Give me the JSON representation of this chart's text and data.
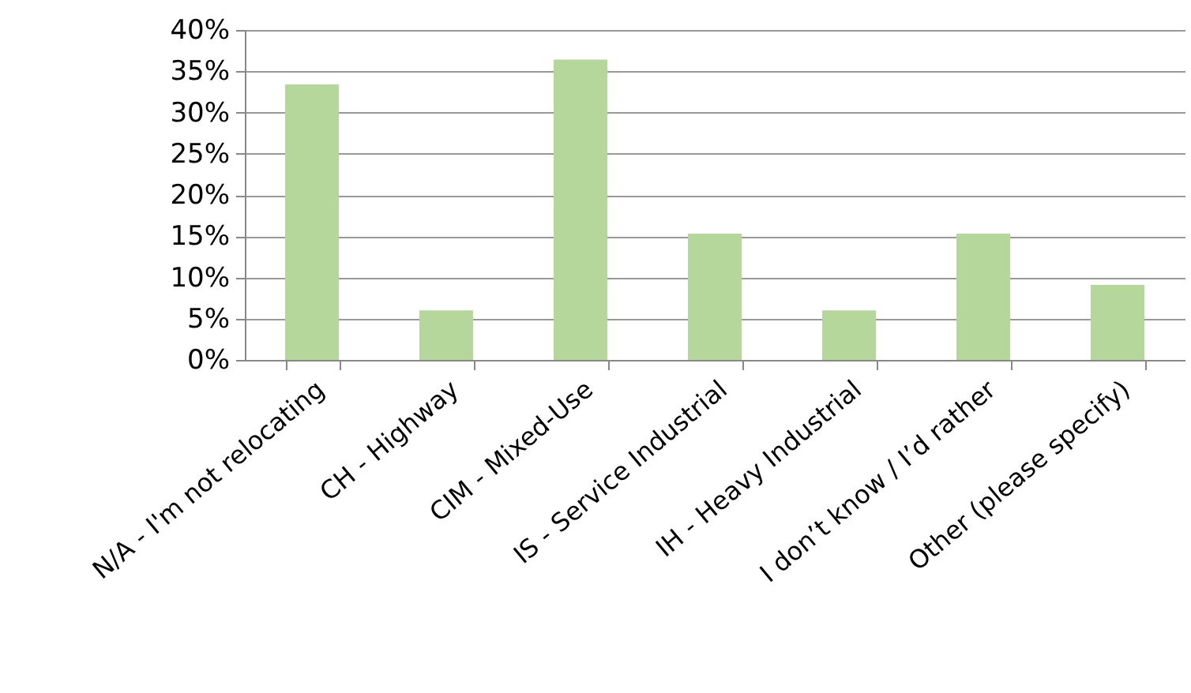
{
  "chart_data": {
    "type": "bar",
    "categories": [
      "N/A - I'm not relocating",
      "CH - Highway",
      "CIM - Mixed-Use",
      "IS - Service Industrial",
      "IH - Heavy Industrial",
      "I don’t know / I’d rather",
      "Other (please specify)"
    ],
    "values": [
      33.4,
      6.0,
      36.4,
      15.3,
      6.0,
      15.3,
      9.1
    ],
    "color": "#b5d79c",
    "ylim": [
      0,
      40
    ],
    "yticks": [
      {
        "value": 0,
        "label": "0%"
      },
      {
        "value": 5,
        "label": "5%"
      },
      {
        "value": 10,
        "label": "10%"
      },
      {
        "value": 15,
        "label": "15%"
      },
      {
        "value": 20,
        "label": "20%"
      },
      {
        "value": 25,
        "label": "25%"
      },
      {
        "value": 30,
        "label": "30%"
      },
      {
        "value": 35,
        "label": "35%"
      },
      {
        "value": 40,
        "label": "40%"
      }
    ],
    "grid": "y"
  }
}
